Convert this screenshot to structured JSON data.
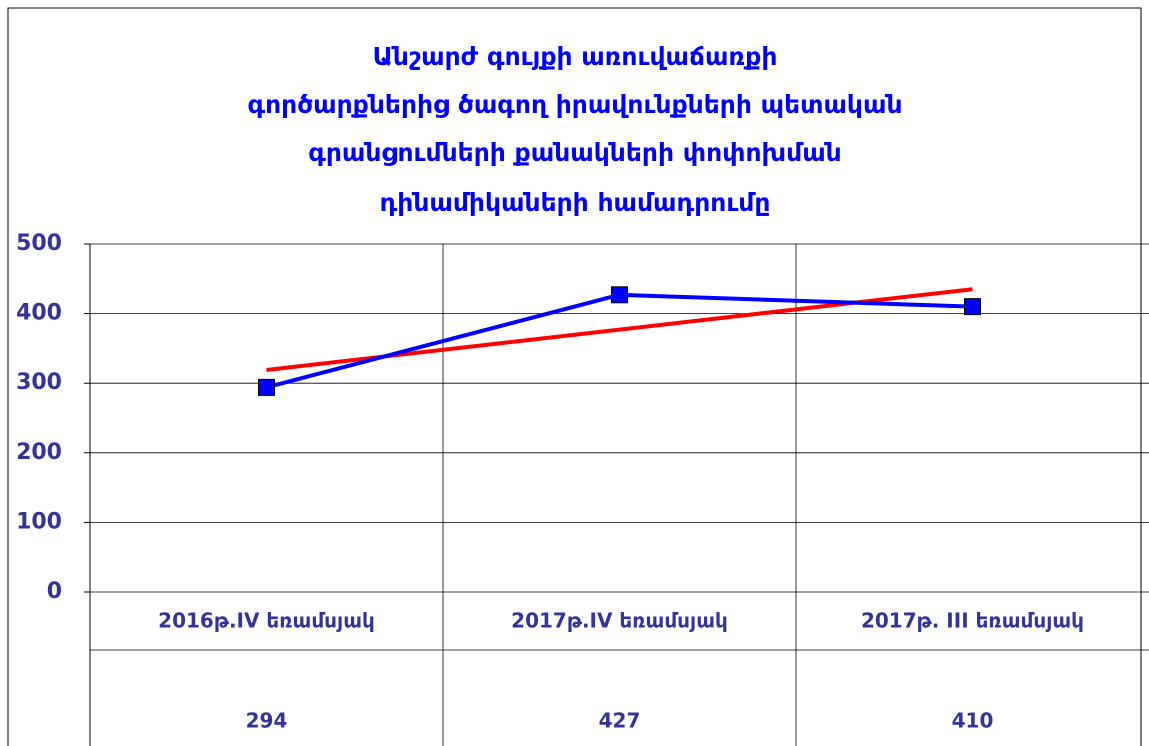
{
  "chart_data": {
    "type": "line",
    "title": [
      "Անշարժ   գույքի   առուվաճառքի",
      "գործարքներից  ծագող  իրավունքների  պետական",
      "գրանցումների  քանակների  փոփոխման",
      "դինամիկաների    համադրումը"
    ],
    "categories": [
      "2016թ.IV  եռամսյակ",
      "2017թ.IV  եռամսյակ",
      "2017թ. III եռամսյակ"
    ],
    "series": [
      {
        "color": "#0000ff",
        "marker_color": "#0000ff",
        "values": [
          294,
          427,
          410
        ]
      }
    ],
    "trendline": {
      "color": "#ff0000",
      "values": [
        319,
        377,
        435
      ]
    },
    "ylim": [
      0,
      500
    ],
    "yticks": [
      0,
      100,
      200,
      300,
      400,
      500
    ],
    "grid": true,
    "data_table": true
  }
}
